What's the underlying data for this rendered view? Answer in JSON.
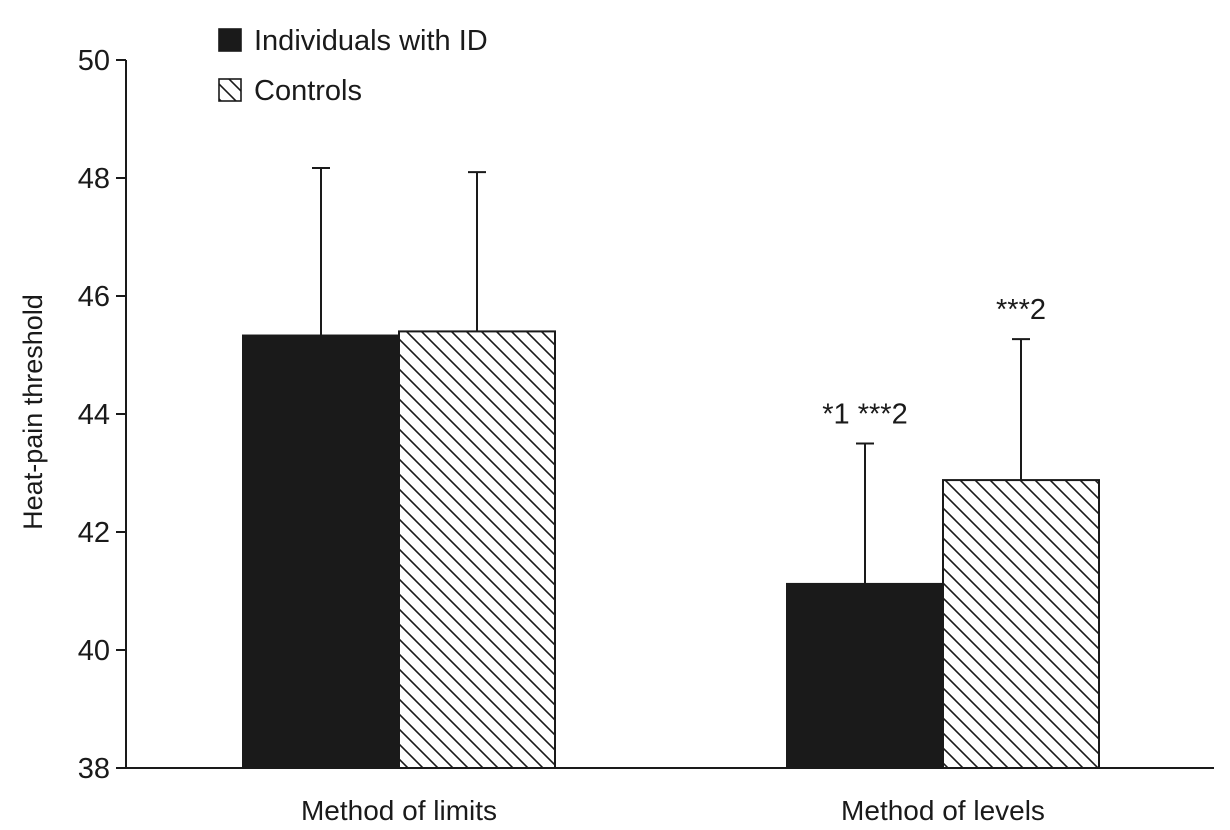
{
  "chart_data": {
    "type": "bar",
    "title": "",
    "xlabel": "",
    "ylabel": "Heat-pain threshold",
    "ylim": [
      38,
      50
    ],
    "yticks": [
      38,
      40,
      42,
      44,
      46,
      48,
      50
    ],
    "grid": false,
    "legend_position": "top-left",
    "categories": [
      "Method of limits",
      "Method of levels"
    ],
    "series": [
      {
        "name": "Individuals with ID",
        "fill": "solid",
        "color": "#1a1a1a",
        "values": [
          45.33,
          41.12
        ],
        "error_upper": [
          48.17,
          43.5
        ]
      },
      {
        "name": "Controls",
        "fill": "diagonal-hatch",
        "color": "#1a1a1a",
        "values": [
          45.4,
          42.88
        ],
        "error_upper": [
          48.1,
          45.27
        ]
      }
    ],
    "annotations": [
      {
        "text": "*1 ***2",
        "category": 1,
        "series": 0
      },
      {
        "text": "***2",
        "category": 1,
        "series": 1
      }
    ]
  }
}
